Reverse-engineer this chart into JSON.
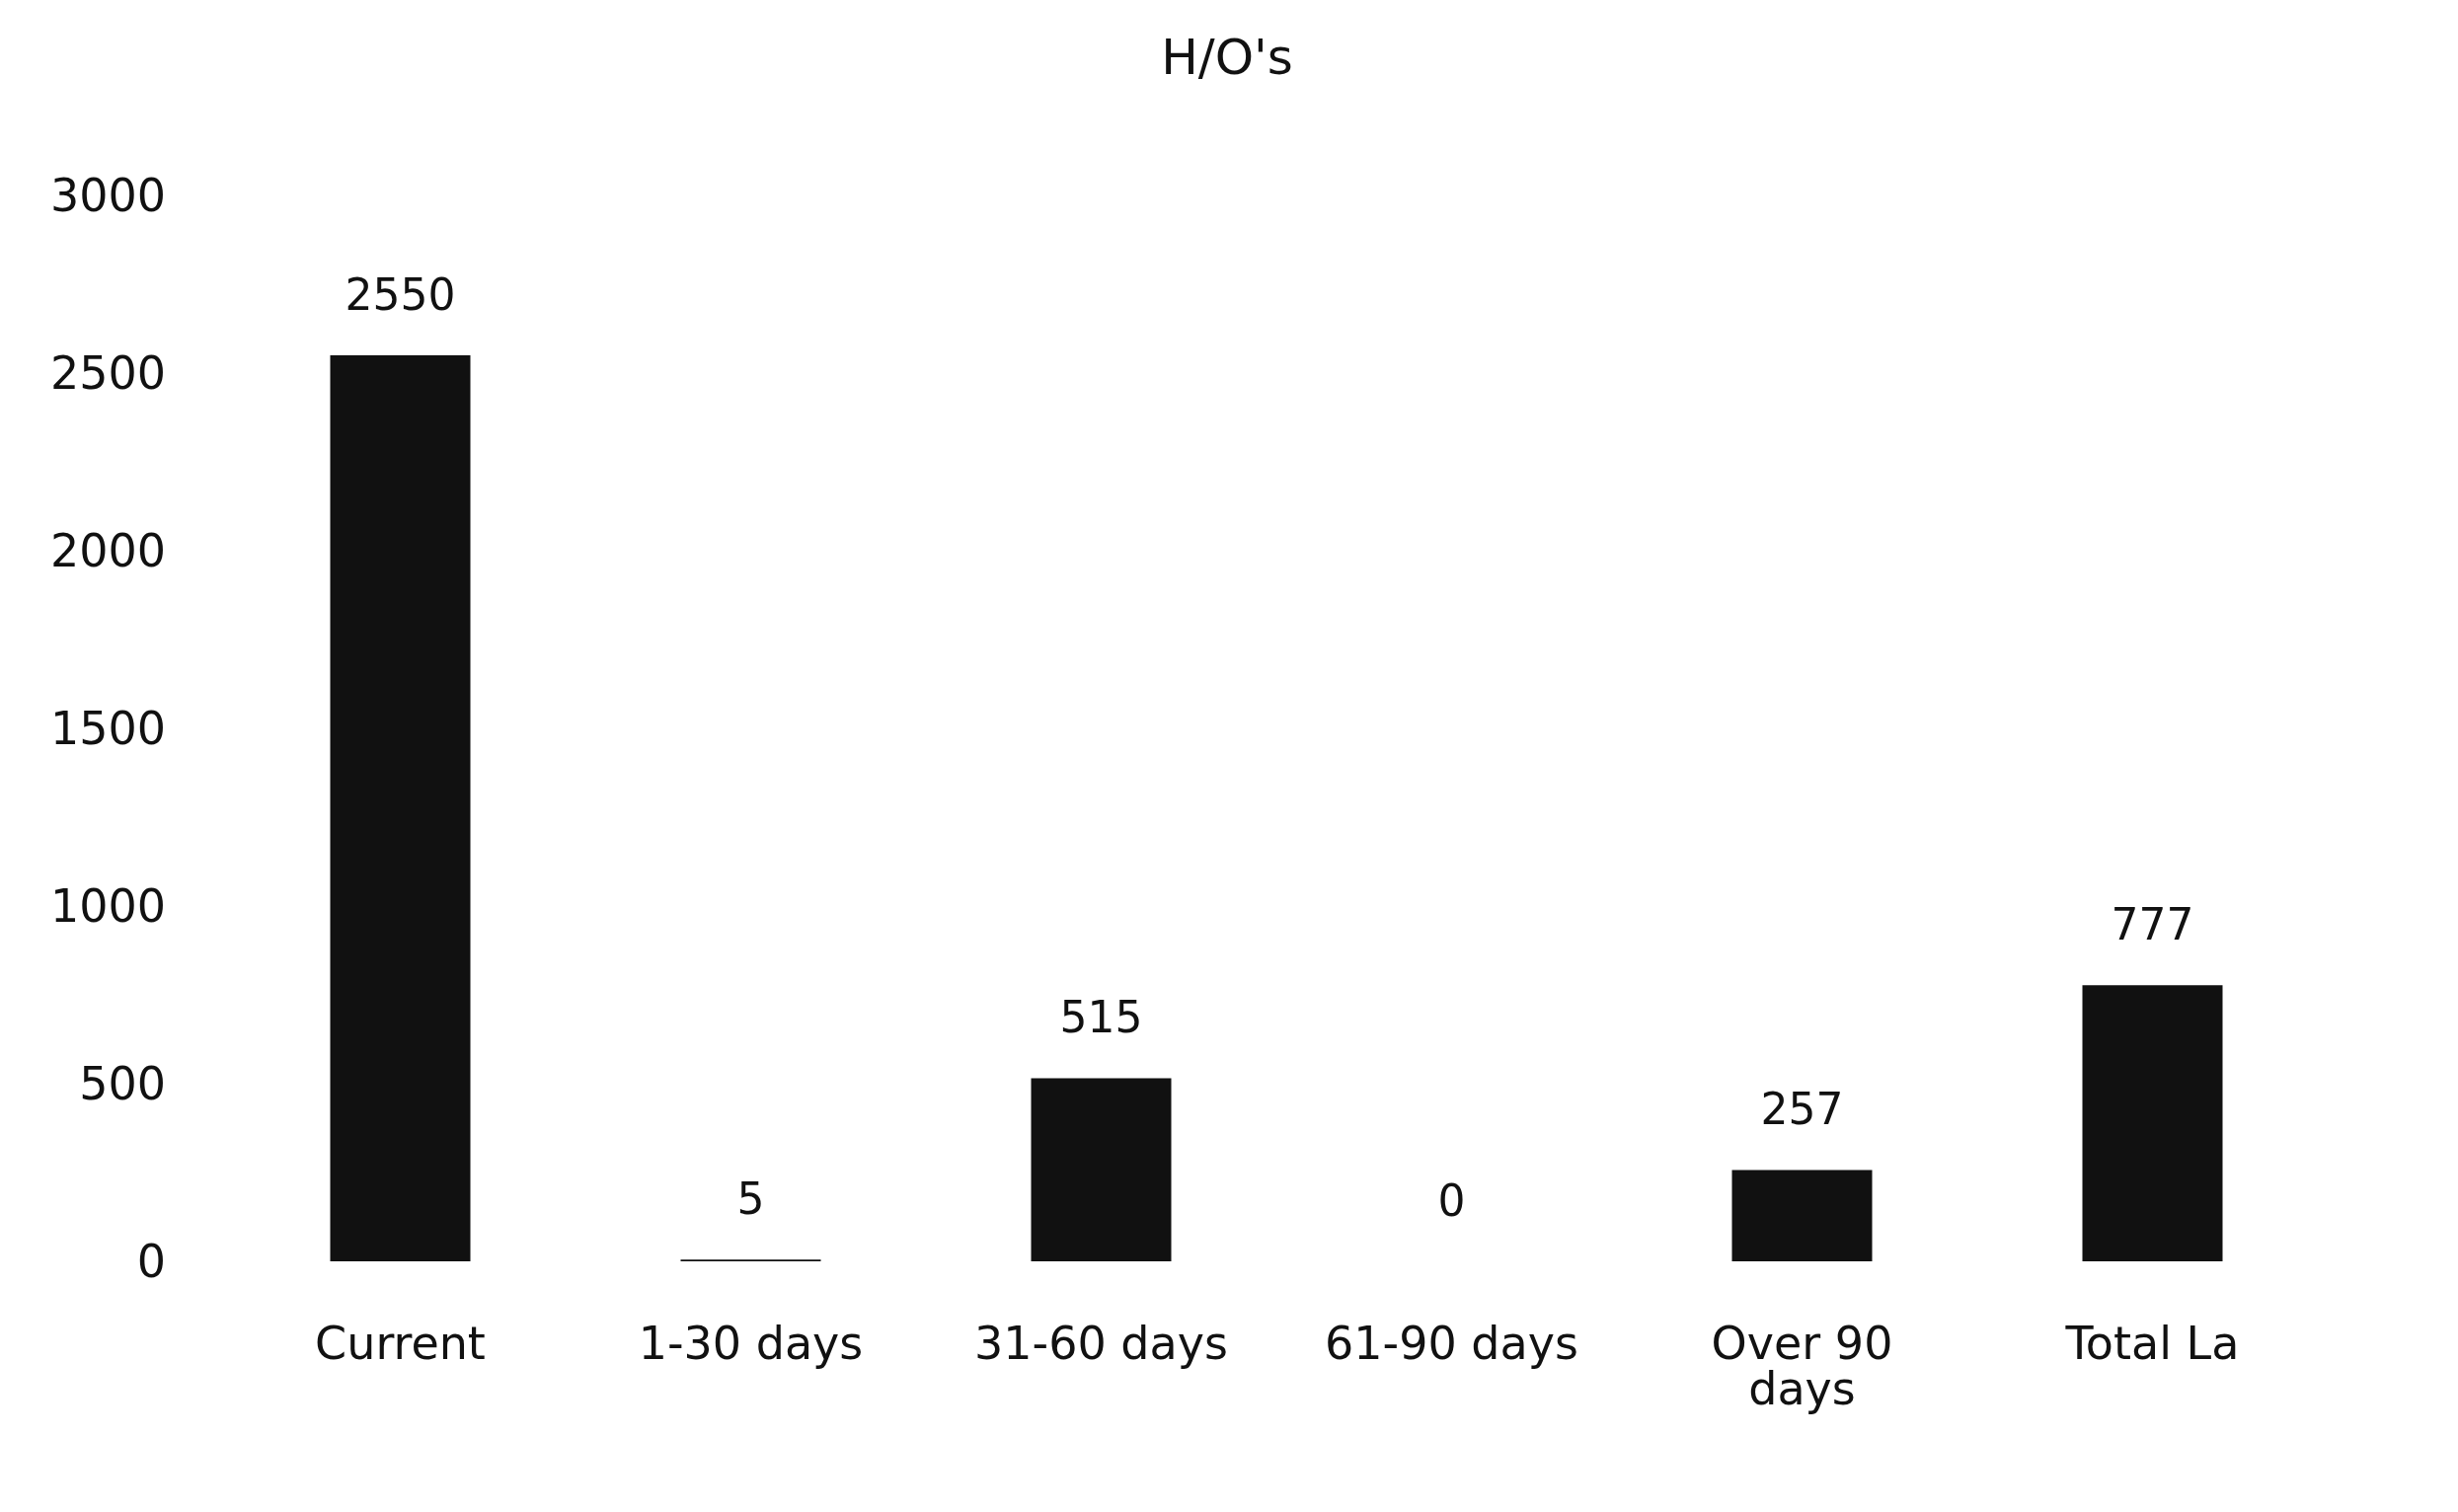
{
  "chart_data": {
    "type": "bar",
    "title": "H/O's",
    "categories": [
      "Current",
      "1-30 days",
      "31-60 days",
      "61-90 days",
      "Over 90\ndays",
      "Total La"
    ],
    "values": [
      2550,
      5,
      515,
      0,
      257,
      777
    ],
    "color": "#111111",
    "ylim": [
      0,
      3000
    ],
    "yticks": [
      0,
      500,
      1000,
      1500,
      2000,
      2500,
      3000
    ],
    "grid": false,
    "data_labels": true
  }
}
